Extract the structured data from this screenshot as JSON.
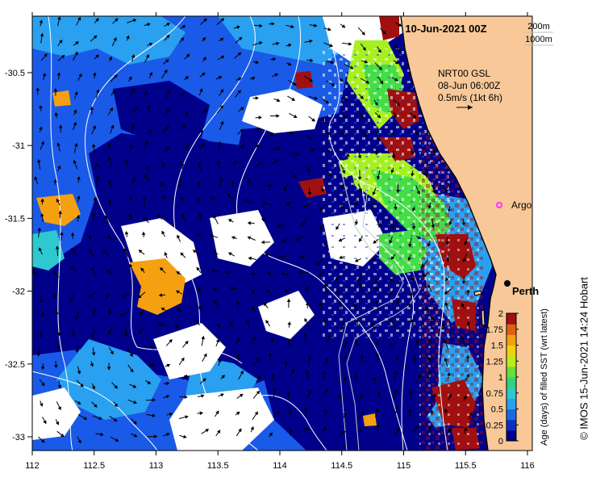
{
  "header": {
    "date_label": "10-Jun-2021 00Z",
    "isobath_labels": [
      "200m",
      "1000m"
    ]
  },
  "current_info": {
    "line1": "NRT00 GSL",
    "line2": "08-Jun 06:00Z",
    "line3": "0.5m/s (1kt 6h)"
  },
  "markers": {
    "argo": {
      "label": "Argo",
      "lon": 115.78,
      "lat": -31.52,
      "color": "#ff33ff"
    },
    "perth": {
      "label": "Perth",
      "lon": 115.86,
      "lat": -31.95
    }
  },
  "axes": {
    "x_ticks": [
      "112",
      "112.5",
      "113",
      "113.5",
      "114",
      "114.5",
      "115",
      "115.5",
      "116"
    ],
    "y_ticks": [
      "-30.5",
      "-31",
      "-31.5",
      "-32",
      "-32.5",
      "-33"
    ],
    "lon_range": [
      112,
      116.2
    ],
    "lat_range": [
      -33.1,
      -30.1
    ]
  },
  "colorbar": {
    "label": "Age (days) of filled SST (wrt latest)",
    "ticks": [
      "0",
      "0.25",
      "0.5",
      "0.75",
      "1",
      "1.25",
      "1.5",
      "1.75",
      "2"
    ],
    "colors": [
      "#00008b",
      "#0a2fc8",
      "#1a6ae0",
      "#2aa0f0",
      "#2ec8d0",
      "#33d080",
      "#66e03a",
      "#b8ec1a",
      "#f0d010",
      "#f4a010",
      "#e06010",
      "#a01010"
    ]
  },
  "credit": "© IMOS 15-Jun-2021 14:24 Hobart",
  "colors": {
    "land": "#f8c898",
    "no_data": "#ffffff",
    "deep_blue": "#00008b",
    "mid_blue": "#1a5ae8",
    "light_blue": "#2aa0f0",
    "green": "#44dd44",
    "lime": "#a6f020",
    "orange": "#f4a010",
    "dark_red": "#a01010",
    "coast": "#000000",
    "isobath": "#ffffff"
  }
}
